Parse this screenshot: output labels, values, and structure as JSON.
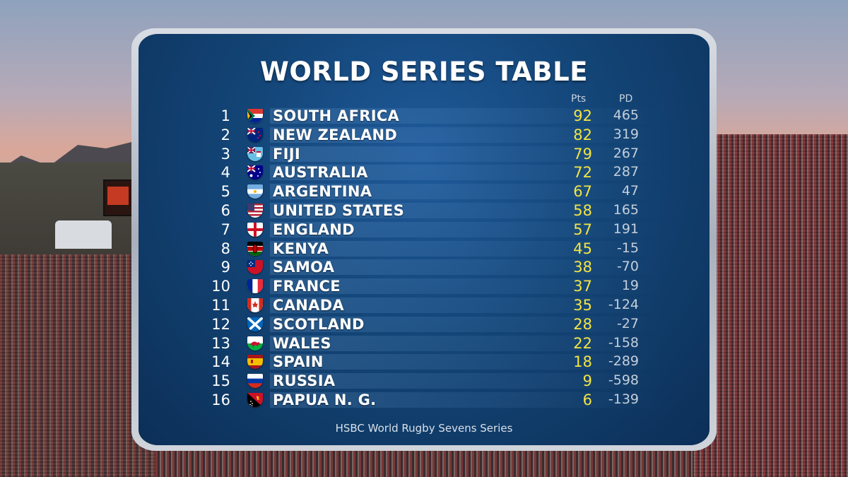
{
  "title": "WORLD SERIES TABLE",
  "columns": {
    "pts": "Pts",
    "pd": "PD"
  },
  "footer": "HSBC World Rugby Sevens Series",
  "rows": [
    {
      "pos": "1",
      "team": "SOUTH AFRICA",
      "pts": "92",
      "pd": "465",
      "flag": "south-africa"
    },
    {
      "pos": "2",
      "team": "NEW ZEALAND",
      "pts": "82",
      "pd": "319",
      "flag": "new-zealand"
    },
    {
      "pos": "3",
      "team": "FIJI",
      "pts": "79",
      "pd": "267",
      "flag": "fiji"
    },
    {
      "pos": "4",
      "team": "AUSTRALIA",
      "pts": "72",
      "pd": "287",
      "flag": "australia"
    },
    {
      "pos": "5",
      "team": "ARGENTINA",
      "pts": "67",
      "pd": "47",
      "flag": "argentina"
    },
    {
      "pos": "6",
      "team": "UNITED STATES",
      "pts": "58",
      "pd": "165",
      "flag": "united-states"
    },
    {
      "pos": "7",
      "team": "ENGLAND",
      "pts": "57",
      "pd": "191",
      "flag": "england"
    },
    {
      "pos": "8",
      "team": "KENYA",
      "pts": "45",
      "pd": "-15",
      "flag": "kenya"
    },
    {
      "pos": "9",
      "team": "SAMOA",
      "pts": "38",
      "pd": "-70",
      "flag": "samoa"
    },
    {
      "pos": "10",
      "team": "FRANCE",
      "pts": "37",
      "pd": "19",
      "flag": "france"
    },
    {
      "pos": "11",
      "team": "CANADA",
      "pts": "35",
      "pd": "-124",
      "flag": "canada"
    },
    {
      "pos": "12",
      "team": "SCOTLAND",
      "pts": "28",
      "pd": "-27",
      "flag": "scotland"
    },
    {
      "pos": "13",
      "team": "WALES",
      "pts": "22",
      "pd": "-158",
      "flag": "wales"
    },
    {
      "pos": "14",
      "team": "SPAIN",
      "pts": "18",
      "pd": "-289",
      "flag": "spain"
    },
    {
      "pos": "15",
      "team": "RUSSIA",
      "pts": "9",
      "pd": "-598",
      "flag": "russia"
    },
    {
      "pos": "16",
      "team": "PAPUA N. G.",
      "pts": "6",
      "pd": "-139",
      "flag": "papua-new-guinea"
    }
  ],
  "colors": {
    "panel": "#134577",
    "points": "#f3e443",
    "text": "#ffffff",
    "pd": "#c4cfdb"
  }
}
